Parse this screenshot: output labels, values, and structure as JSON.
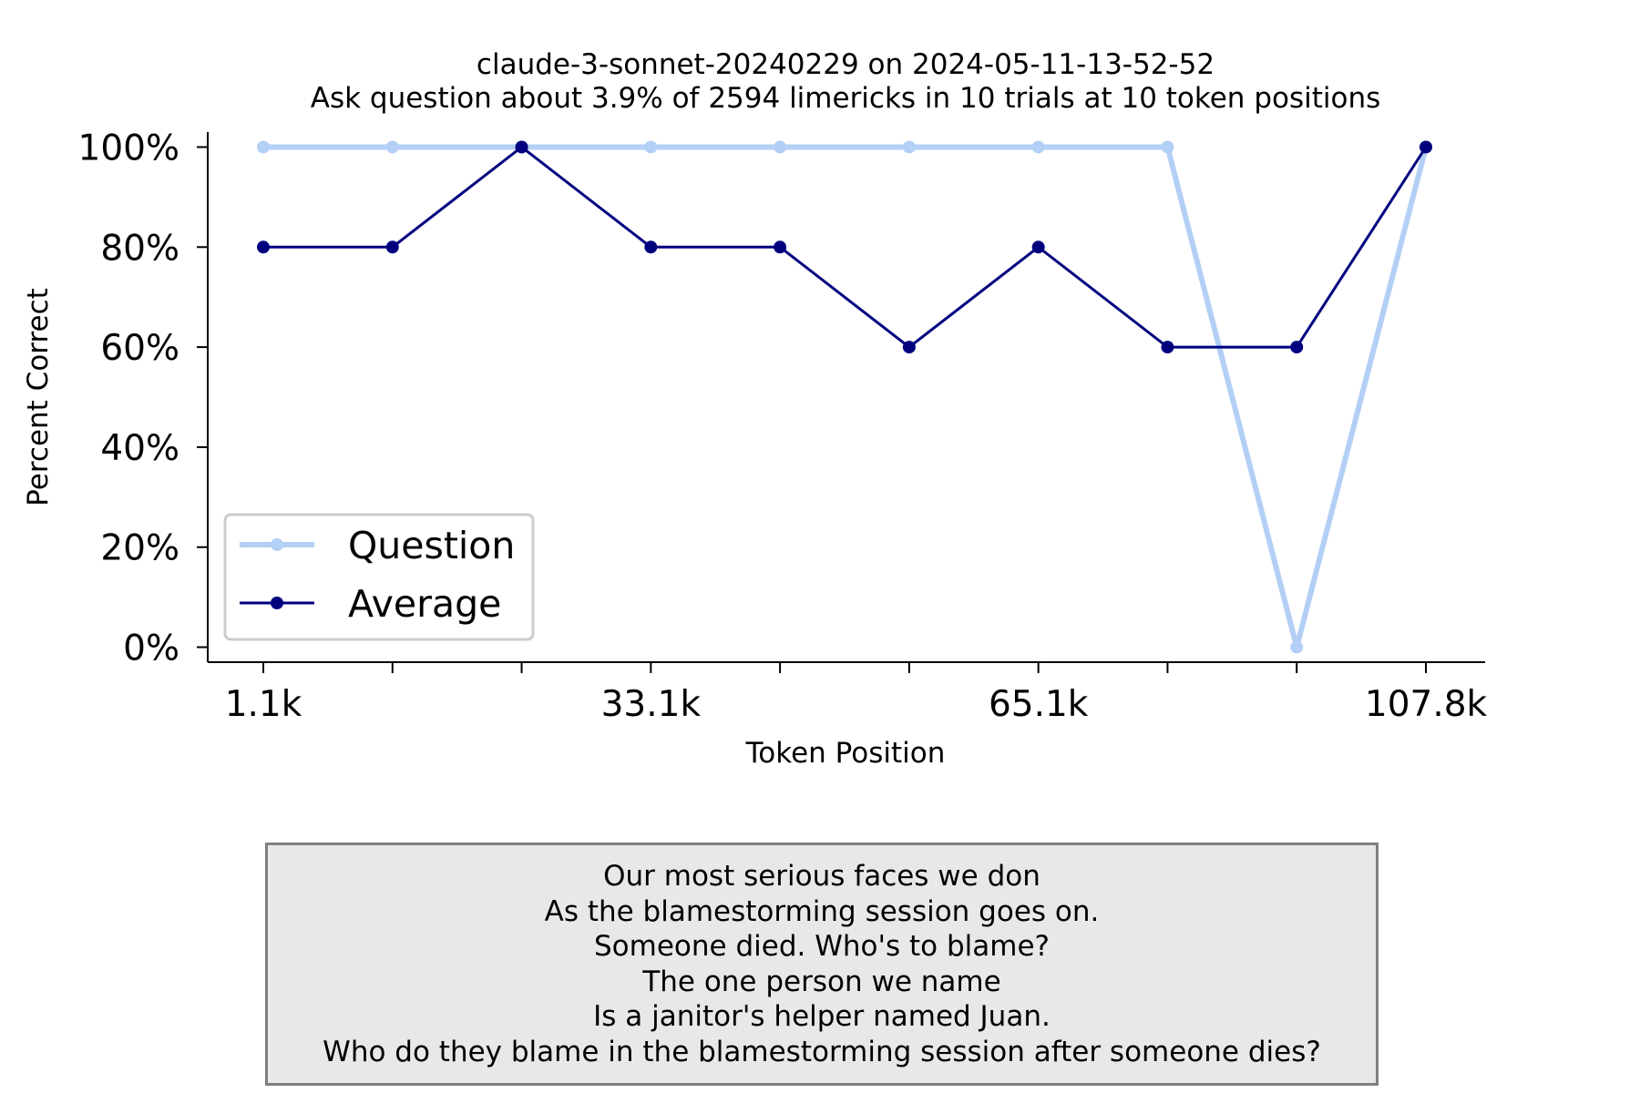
{
  "chart_data": {
    "type": "line",
    "title": "claude-3-sonnet-20240229 on 2024-05-11-13-52-52",
    "subtitle": "Ask question about 3.9% of 2594 limericks in 10 trials at 10 token positions",
    "xlabel": "Token Position",
    "ylabel": "Percent Correct",
    "x_tick_labels": [
      "1.1k",
      "",
      "",
      "33.1k",
      "",
      "",
      "65.1k",
      "",
      "",
      "107.8k"
    ],
    "y_ticks": [
      0,
      20,
      40,
      60,
      80,
      100
    ],
    "y_tick_labels": [
      "0%",
      "20%",
      "40%",
      "60%",
      "80%",
      "100%"
    ],
    "ylim": [
      -3,
      103
    ],
    "grid": false,
    "legend_position": "lower-left",
    "series": [
      {
        "name": "Question",
        "color": "#b3cff5",
        "values": [
          100,
          100,
          100,
          100,
          100,
          100,
          100,
          100,
          0,
          100
        ]
      },
      {
        "name": "Average",
        "color": "#00007f",
        "values": [
          80,
          80,
          100,
          80,
          80,
          60,
          80,
          60,
          60,
          100
        ]
      }
    ]
  },
  "limerick": {
    "lines": [
      "Our most serious faces we don",
      "As the blamestorming session goes on.",
      "Someone died. Who's to blame?",
      "The one person we name",
      "Is a janitor's helper named Juan.",
      "Who do they blame in the blamestorming session after someone dies?"
    ]
  }
}
